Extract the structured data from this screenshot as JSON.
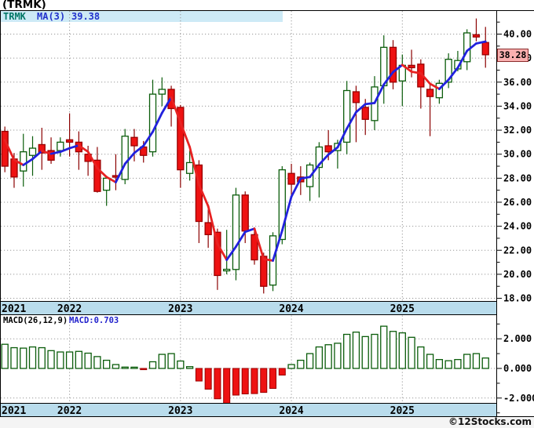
{
  "page": {
    "title": "(TRMK)",
    "watermark": "©12Stocks.com"
  },
  "legend": {
    "symbol": "TRMK",
    "ma_label": "MA(3)",
    "ma_value": "39.38"
  },
  "macd_header": {
    "params_label": "MACD(26,12,9)",
    "value_label": "MACD:0.703"
  },
  "last_price": "38.28",
  "colors": {
    "legend_strip": "#cdeaf6",
    "axis_bar": "#b9dcec",
    "footer_bg": "#f4f4f4",
    "grid": "#999999",
    "border": "#000000",
    "candle_up_stroke": "#0a5c0a",
    "candle_up_fill": "#ffffff",
    "candle_down_fill": "#ee1212",
    "candle_down_stroke": "#990000",
    "wick_up": "#0a5c0a",
    "wick_down": "#8b0000",
    "ma_rising": "#2121dd",
    "ma_falling": "#e82222",
    "macd_pos_stroke": "#0a5c0a",
    "macd_pos_fill": "#ffffff",
    "macd_neg_fill": "#ee1212",
    "macd_neg_stroke": "#990000",
    "legend_symbol_color": "#007766",
    "legend_ma_color": "#2233cc",
    "macd_value_color": "#2222cc",
    "last_price_fill": "#f9b0b0",
    "last_price_border": "#8b2e2e",
    "tick_label_color": "#000000"
  },
  "chart_data": [
    {
      "type": "candlestick",
      "symbol": "TRMK",
      "interval": "monthly",
      "title": "(TRMK)",
      "ylim": [
        18,
        40
      ],
      "y_tick_step": 2,
      "y_tick_labels": [
        "40.00",
        "38.00",
        "36.00",
        "34.00",
        "32.00",
        "30.00",
        "28.00",
        "26.00",
        "24.00",
        "22.00",
        "20.00",
        "18.00"
      ],
      "y_tick_values": [
        40,
        38,
        36,
        34,
        32,
        30,
        28,
        26,
        24,
        22,
        20,
        18
      ],
      "x_years": [
        {
          "label": "2021",
          "candle_index": 0
        },
        {
          "label": "2022",
          "candle_index": 7
        },
        {
          "label": "2023",
          "candle_index": 19
        },
        {
          "label": "2024",
          "candle_index": 31
        },
        {
          "label": "2025",
          "candle_index": 43
        }
      ],
      "last_close": 38.28,
      "ma3": {
        "label": "MA(3)",
        "current": 39.38,
        "seed_closes": [
          33.0,
          31.5
        ]
      },
      "ohlc": [
        [
          31.9,
          32.3,
          28.5,
          29.0
        ],
        [
          29.6,
          30.1,
          27.2,
          28.1
        ],
        [
          28.6,
          31.7,
          27.3,
          30.2
        ],
        [
          29.9,
          31.5,
          28.2,
          30.5
        ],
        [
          30.8,
          32.2,
          28.7,
          30.1
        ],
        [
          30.3,
          31.4,
          29.2,
          29.5
        ],
        [
          30.3,
          31.4,
          29.8,
          31.0
        ],
        [
          31.2,
          33.4,
          29.8,
          31.0
        ],
        [
          31.0,
          31.9,
          28.7,
          30.2
        ],
        [
          30.0,
          30.7,
          28.2,
          29.4
        ],
        [
          29.5,
          30.6,
          26.8,
          26.9
        ],
        [
          27.0,
          28.2,
          25.7,
          28.0
        ],
        [
          28.2,
          30.0,
          27.0,
          28.1
        ],
        [
          27.9,
          32.1,
          27.5,
          31.5
        ],
        [
          31.4,
          32.1,
          29.4,
          30.7
        ],
        [
          30.6,
          31.1,
          29.3,
          29.9
        ],
        [
          30.2,
          36.2,
          29.8,
          35.0
        ],
        [
          35.0,
          36.4,
          34.0,
          35.4
        ],
        [
          35.4,
          35.7,
          32.3,
          33.8
        ],
        [
          33.9,
          34.1,
          27.2,
          28.7
        ],
        [
          28.4,
          30.3,
          27.8,
          29.3
        ],
        [
          29.1,
          29.5,
          22.6,
          24.4
        ],
        [
          24.3,
          25.4,
          22.2,
          23.3
        ],
        [
          23.5,
          23.8,
          18.7,
          19.9
        ],
        [
          20.3,
          23.7,
          20.0,
          20.4
        ],
        [
          20.4,
          27.2,
          19.5,
          26.6
        ],
        [
          26.6,
          26.9,
          22.6,
          23.6
        ],
        [
          23.3,
          23.9,
          20.8,
          21.2
        ],
        [
          21.5,
          21.8,
          18.4,
          19.0
        ],
        [
          19.1,
          23.5,
          18.6,
          23.2
        ],
        [
          22.9,
          29.0,
          22.5,
          28.7
        ],
        [
          28.4,
          29.2,
          26.4,
          27.5
        ],
        [
          28.1,
          29.0,
          26.6,
          27.7
        ],
        [
          27.3,
          29.3,
          26.1,
          29.1
        ],
        [
          28.9,
          31.0,
          26.4,
          30.6
        ],
        [
          30.7,
          32.0,
          29.5,
          30.2
        ],
        [
          30.3,
          31.2,
          28.8,
          30.9
        ],
        [
          31.0,
          36.1,
          30.0,
          35.3
        ],
        [
          35.2,
          35.7,
          31.0,
          34.3
        ],
        [
          33.9,
          34.6,
          31.6,
          32.9
        ],
        [
          32.8,
          36.5,
          32.0,
          35.6
        ],
        [
          35.7,
          39.9,
          34.2,
          38.9
        ],
        [
          38.9,
          39.5,
          35.4,
          36.0
        ],
        [
          36.1,
          38.3,
          34.0,
          37.4
        ],
        [
          37.4,
          38.7,
          36.4,
          37.2
        ],
        [
          37.5,
          37.9,
          33.8,
          35.6
        ],
        [
          35.4,
          35.9,
          31.5,
          34.8
        ],
        [
          34.7,
          36.2,
          34.2,
          35.9
        ],
        [
          36.0,
          38.4,
          35.5,
          37.9
        ],
        [
          37.1,
          38.6,
          36.9,
          37.8
        ],
        [
          37.7,
          40.4,
          37.0,
          40.1
        ],
        [
          39.95,
          41.3,
          39.4,
          39.76
        ],
        [
          39.3,
          40.6,
          37.2,
          38.28
        ]
      ]
    },
    {
      "type": "bar",
      "title": "MACD(26,12,9)",
      "current": 0.703,
      "ylim": [
        -3,
        3.3
      ],
      "y_tick_labels": [
        {
          "label": "2.000",
          "value": 2
        },
        {
          "label": "0.000",
          "value": 0
        },
        {
          "label": "-2.000",
          "value": -2
        }
      ],
      "minor_tick_values": [
        3,
        2,
        1,
        0,
        -1,
        -2,
        -3
      ],
      "values": [
        1.63,
        1.4,
        1.37,
        1.45,
        1.4,
        1.2,
        1.11,
        1.11,
        1.15,
        1.03,
        0.8,
        0.55,
        0.26,
        0.09,
        0.05,
        -0.05,
        0.45,
        0.95,
        1.0,
        0.5,
        0.12,
        -0.85,
        -1.4,
        -2.05,
        -2.35,
        -1.8,
        -1.72,
        -1.7,
        -1.62,
        -1.35,
        -0.45,
        0.26,
        0.55,
        1.0,
        1.45,
        1.6,
        1.7,
        2.3,
        2.45,
        2.15,
        2.3,
        2.85,
        2.5,
        2.4,
        2.1,
        1.45,
        0.95,
        0.6,
        0.52,
        0.6,
        0.95,
        1.0,
        0.703
      ]
    }
  ]
}
